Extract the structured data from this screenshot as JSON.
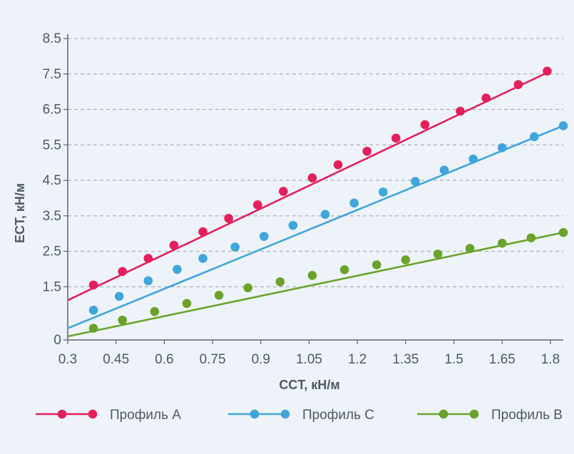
{
  "chart_data": {
    "type": "line",
    "xlabel": "CCT, кН/м",
    "ylabel": "ECT, кН/м",
    "xlim": [
      0.3,
      1.84
    ],
    "ylim": [
      0,
      8.5
    ],
    "x_ticks": [
      "0.3",
      "0.45",
      "0.6",
      "0.75",
      "0.9",
      "1.05",
      "1.2",
      "1.35",
      "1.5",
      "1.65",
      "1.8"
    ],
    "y_ticks": [
      "0",
      "1.5",
      "2.5",
      "3.5",
      "4.5",
      "5.5",
      "6.5",
      "7.5",
      "8.5"
    ],
    "grid": "horizontal-dashed",
    "legend_position": "bottom",
    "series": [
      {
        "name": "Профиль А",
        "color": "#e31f5c",
        "line": [
          [
            0.3,
            1.12
          ],
          [
            1.8,
            7.58
          ]
        ],
        "x": [
          0.38,
          0.47,
          0.55,
          0.63,
          0.72,
          0.8,
          0.89,
          0.97,
          1.06,
          1.14,
          1.23,
          1.32,
          1.41,
          1.52,
          1.6,
          1.7,
          1.79
        ],
        "y": [
          1.55,
          1.93,
          2.3,
          2.67,
          3.05,
          3.43,
          3.81,
          4.19,
          4.57,
          4.94,
          5.32,
          5.69,
          6.07,
          6.45,
          6.82,
          7.2,
          7.58
        ]
      },
      {
        "name": "Профиль С",
        "color": "#3ea6da",
        "line": [
          [
            0.3,
            0.33
          ],
          [
            1.84,
            6.04
          ]
        ],
        "x": [
          0.38,
          0.46,
          0.55,
          0.64,
          0.72,
          0.82,
          0.91,
          1.0,
          1.1,
          1.19,
          1.28,
          1.38,
          1.47,
          1.56,
          1.65,
          1.75,
          1.84
        ],
        "y": [
          0.84,
          1.23,
          1.67,
          1.99,
          2.3,
          2.62,
          2.92,
          3.23,
          3.54,
          3.86,
          4.17,
          4.47,
          4.79,
          5.1,
          5.42,
          5.73,
          6.04
        ]
      },
      {
        "name": "Профиль В",
        "color": "#6aa32c",
        "line": [
          [
            0.3,
            0.1
          ],
          [
            1.84,
            3.03
          ]
        ],
        "x": [
          0.38,
          0.47,
          0.57,
          0.67,
          0.77,
          0.86,
          0.96,
          1.06,
          1.16,
          1.26,
          1.35,
          1.45,
          1.55,
          1.65,
          1.74,
          1.84
        ],
        "y": [
          0.33,
          0.56,
          0.8,
          1.03,
          1.26,
          1.47,
          1.64,
          1.82,
          1.98,
          2.12,
          2.26,
          2.42,
          2.58,
          2.73,
          2.88,
          3.03
        ]
      }
    ]
  }
}
